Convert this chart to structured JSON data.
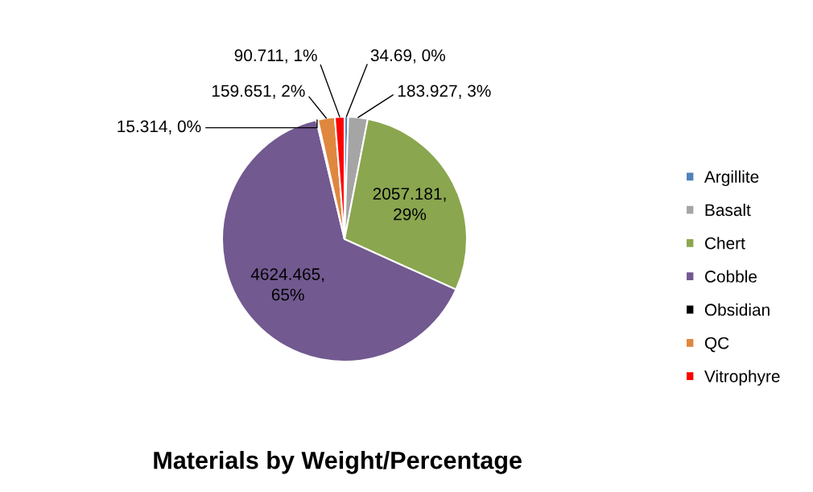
{
  "chart_data": {
    "type": "pie",
    "title": "Materials by Weight/Percentage",
    "categories": [
      "Argillite",
      "Basalt",
      "Chert",
      "Cobble",
      "Obsidian",
      "QC",
      "Vitrophyre"
    ],
    "values": [
      34.69,
      183.927,
      2057.181,
      4624.465,
      15.314,
      159.651,
      90.711
    ],
    "colors": [
      "#4f81bd",
      "#a5a5a5",
      "#8aa64e",
      "#725990",
      "#000000",
      "#e0873f",
      "#ff0000"
    ],
    "value_labels": [
      "34.69, 0%",
      "183.927, 3%",
      "2057.181, 29%",
      "4624.465, 65%",
      "15.314, 0%",
      "159.651, 2%",
      "90.711, 1%"
    ],
    "legend": "right"
  }
}
